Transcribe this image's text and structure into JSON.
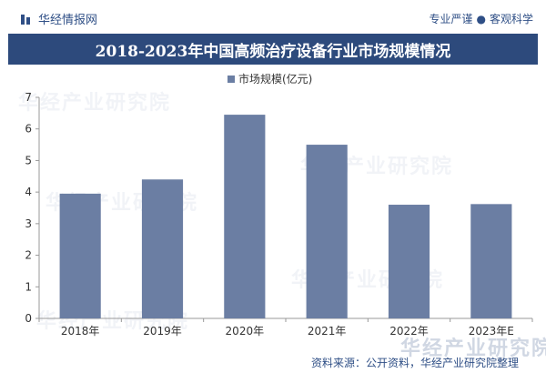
{
  "header": {
    "brand": "华经情报网",
    "slogan_left": "专业严谨",
    "slogan_sep": "●",
    "slogan_right": "客观科学"
  },
  "footer": {
    "source": "资料来源：公开资料，华经产业研究院整理"
  },
  "watermark": {
    "text": "华经产业研究院"
  },
  "colors": {
    "bar": "#6b7ea3",
    "title_band": "#2d4a7c",
    "brand": "#2f4f86"
  },
  "chart_data": {
    "type": "bar",
    "title": "2018-2023年中国高频治疗设备行业市场规模情况",
    "xlabel": "",
    "ylabel": "",
    "categories": [
      "2018年",
      "2019年",
      "2020年",
      "2021年",
      "2022年",
      "2023年E"
    ],
    "series": [
      {
        "name": "市场规模(亿元)",
        "values": [
          3.95,
          4.4,
          6.45,
          5.5,
          3.6,
          3.62
        ]
      }
    ],
    "ylim": [
      0,
      7
    ],
    "yticks": [
      0,
      1,
      2,
      3,
      4,
      5,
      6,
      7
    ],
    "legend_position": "top-center",
    "grid": false
  }
}
